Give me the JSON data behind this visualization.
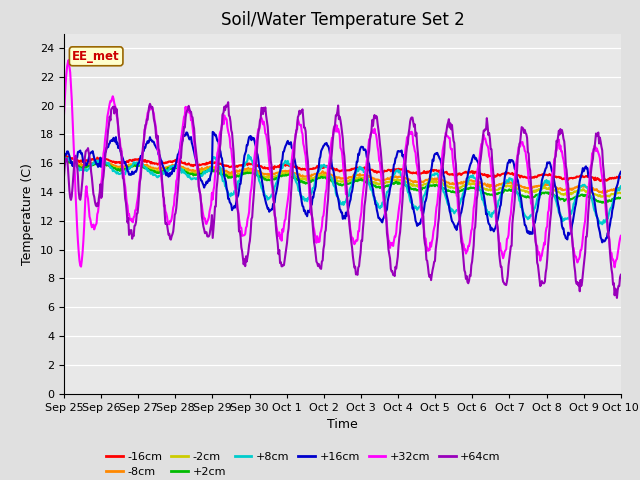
{
  "title": "Soil/Water Temperature Set 2",
  "xlabel": "Time",
  "ylabel": "Temperature (C)",
  "ylim": [
    0,
    25
  ],
  "yticks": [
    0,
    2,
    4,
    6,
    8,
    10,
    12,
    14,
    16,
    18,
    20,
    22,
    24
  ],
  "background_color": "#e0e0e0",
  "plot_bg_color": "#e8e8e8",
  "annotation_text": "EE_met",
  "annotation_bg": "#ffffcc",
  "annotation_border": "#cc0000",
  "series": {
    "-16cm": {
      "color": "#ff0000",
      "lw": 1.5
    },
    "-8cm": {
      "color": "#ff8800",
      "lw": 1.5
    },
    "-2cm": {
      "color": "#cccc00",
      "lw": 1.5
    },
    "+2cm": {
      "color": "#00bb00",
      "lw": 1.5
    },
    "+8cm": {
      "color": "#00cccc",
      "lw": 1.5
    },
    "+16cm": {
      "color": "#0000cc",
      "lw": 1.5
    },
    "+32cm": {
      "color": "#ff00ff",
      "lw": 1.5
    },
    "+64cm": {
      "color": "#9900bb",
      "lw": 1.5
    }
  },
  "xtick_labels": [
    "Sep 25",
    "Sep 26",
    "Sep 27",
    "Sep 28",
    "Sep 29",
    "Sep 30",
    "Oct 1",
    "Oct 2",
    "Oct 3",
    "Oct 4",
    "Oct 5",
    "Oct 6",
    "Oct 7",
    "Oct 8",
    "Oct 9",
    "Oct 10"
  ],
  "title_fontsize": 12,
  "axis_label_fontsize": 9,
  "tick_fontsize": 8
}
